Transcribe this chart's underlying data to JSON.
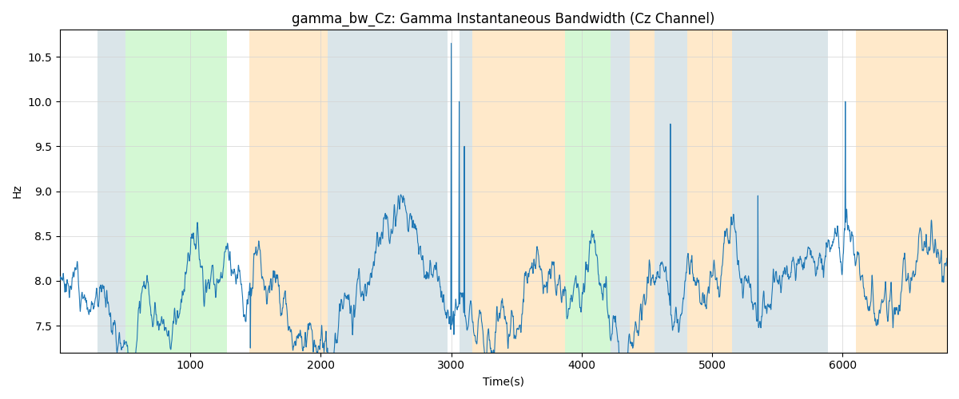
{
  "title": "gamma_bw_Cz: Gamma Instantaneous Bandwidth (Cz Channel)",
  "xlabel": "Time(s)",
  "ylabel": "Hz",
  "ylim": [
    7.2,
    10.8
  ],
  "xlim": [
    0,
    6800
  ],
  "background_color": "#ffffff",
  "line_color": "#1f77b4",
  "line_width": 0.8,
  "title_fontsize": 12,
  "bands": [
    {
      "start": 290,
      "end": 500,
      "color": "#aec6cf",
      "alpha": 0.45
    },
    {
      "start": 500,
      "end": 1280,
      "color": "#90ee90",
      "alpha": 0.38
    },
    {
      "start": 1450,
      "end": 2050,
      "color": "#ffd8a0",
      "alpha": 0.55
    },
    {
      "start": 2050,
      "end": 2970,
      "color": "#aec6cf",
      "alpha": 0.45
    },
    {
      "start": 3060,
      "end": 3160,
      "color": "#aec6cf",
      "alpha": 0.45
    },
    {
      "start": 3160,
      "end": 3870,
      "color": "#ffd8a0",
      "alpha": 0.55
    },
    {
      "start": 3870,
      "end": 4220,
      "color": "#90ee90",
      "alpha": 0.38
    },
    {
      "start": 4220,
      "end": 4370,
      "color": "#aec6cf",
      "alpha": 0.45
    },
    {
      "start": 4370,
      "end": 4560,
      "color": "#ffd8a0",
      "alpha": 0.55
    },
    {
      "start": 4560,
      "end": 4810,
      "color": "#aec6cf",
      "alpha": 0.45
    },
    {
      "start": 4810,
      "end": 5150,
      "color": "#ffd8a0",
      "alpha": 0.55
    },
    {
      "start": 5150,
      "end": 5890,
      "color": "#aec6cf",
      "alpha": 0.45
    },
    {
      "start": 6100,
      "end": 6800,
      "color": "#ffd8a0",
      "alpha": 0.55
    }
  ],
  "seed": 7,
  "n_points": 6700,
  "base_value": 8.0,
  "noise_std": 0.12,
  "smooth_window": 3
}
